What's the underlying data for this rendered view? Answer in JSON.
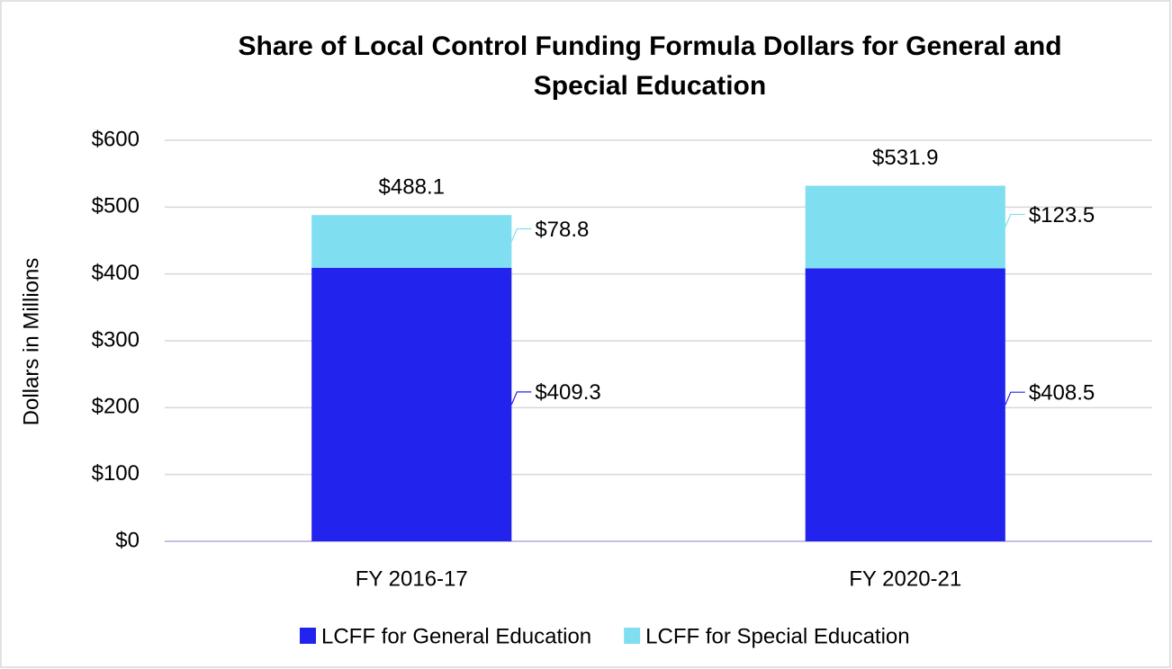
{
  "chart_data": {
    "type": "stacked_bar",
    "title": "Share of Local Control Funding Formula Dollars for General and Special Education",
    "y_label": "Dollars in Millions",
    "categories": [
      "FY 2016-17",
      "FY 2020-21"
    ],
    "series": [
      {
        "name": "LCFF for General Education",
        "color": "#2323ee",
        "values": [
          409.3,
          408.5
        ],
        "value_labels": [
          "$409.3",
          "$408.5"
        ]
      },
      {
        "name": "LCFF for Special Education",
        "color": "#7fdff0",
        "values": [
          78.8,
          123.5
        ],
        "value_labels": [
          "$78.8",
          "$123.5"
        ]
      }
    ],
    "totals": {
      "values": [
        488.1,
        531.9
      ],
      "value_labels": [
        "$488.1",
        "$531.9"
      ]
    },
    "ylim": [
      0,
      600
    ],
    "yticks": [
      {
        "value": 0,
        "label": "$0"
      },
      {
        "value": 100,
        "label": "$100"
      },
      {
        "value": 200,
        "label": "$200"
      },
      {
        "value": 300,
        "label": "$300"
      },
      {
        "value": 400,
        "label": "$400"
      },
      {
        "value": 500,
        "label": "$500"
      },
      {
        "value": 600,
        "label": "$600"
      }
    ],
    "grid": true,
    "legend": "bottom"
  }
}
